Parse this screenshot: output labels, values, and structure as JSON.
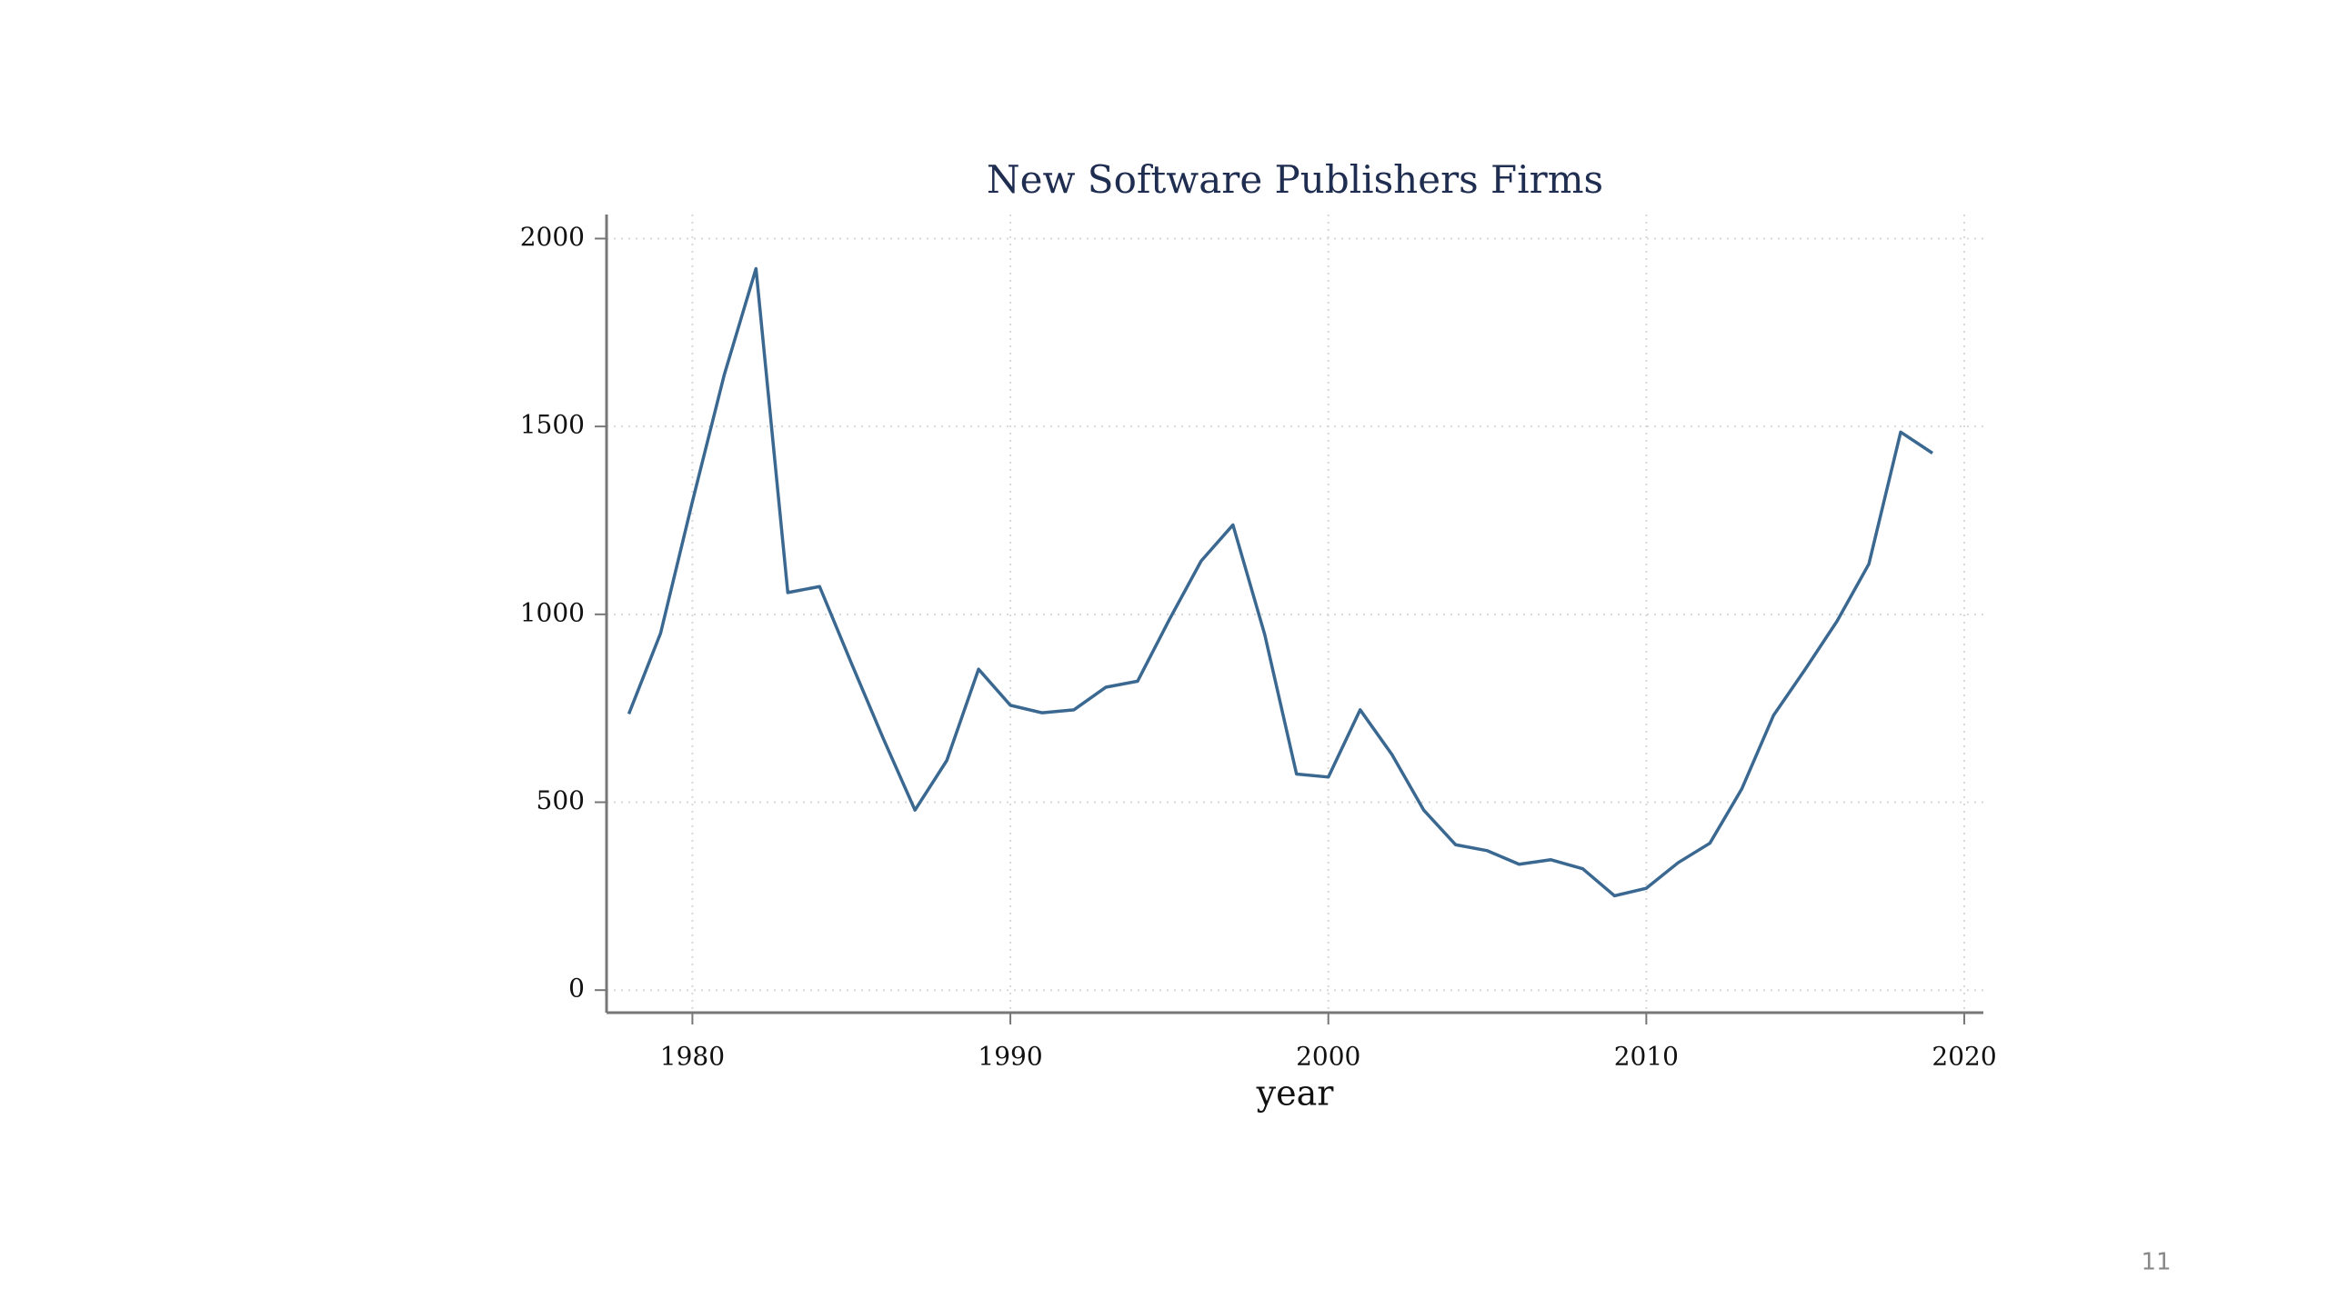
{
  "chart_data": {
    "type": "line",
    "title": "New Software Publishers Firms",
    "x_label": "year",
    "x": [
      1978,
      1979,
      1980,
      1981,
      1982,
      1983,
      1984,
      1985,
      1986,
      1987,
      1988,
      1989,
      1990,
      1991,
      1992,
      1993,
      1994,
      1995,
      1996,
      1997,
      1998,
      1999,
      2000,
      2001,
      2002,
      2003,
      2004,
      2005,
      2006,
      2007,
      2008,
      2009,
      2010,
      2011,
      2012,
      2013,
      2014,
      2015,
      2016,
      2017,
      2018,
      2019
    ],
    "series": [
      {
        "name": "New Software Publishers Firms",
        "color": "#3a6891",
        "values": [
          735,
          950,
          1300,
          1637,
          1920,
          1058,
          1074,
          870,
          670,
          479,
          611,
          854,
          758,
          738,
          746,
          806,
          822,
          986,
          1142,
          1238,
          946,
          575,
          567,
          746,
          627,
          479,
          387,
          371,
          335,
          347,
          323,
          251,
          271,
          339,
          391,
          535,
          731,
          854,
          982,
          1134,
          1485,
          1429
        ]
      }
    ],
    "xlim": [
      1977.3,
      2020.6
    ],
    "xticks": [
      1980,
      1990,
      2000,
      2010,
      2020
    ],
    "ylim": [
      -60,
      2064
    ],
    "yticks": [
      0,
      500,
      1000,
      1500,
      2000
    ],
    "grid": true,
    "page_number": "11"
  }
}
